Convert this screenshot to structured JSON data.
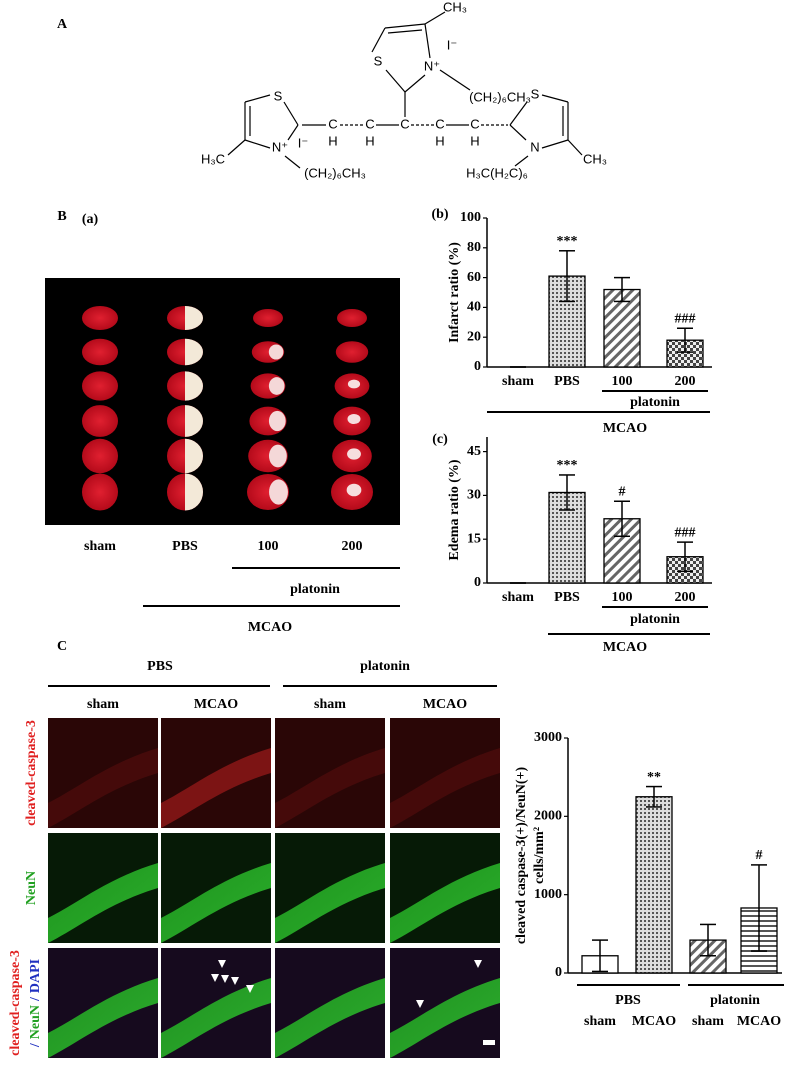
{
  "panels": [
    "A",
    "B",
    "(a)",
    "C"
  ],
  "structure": {
    "labels": [
      "CH₃",
      "I⁻",
      "S",
      "N⁺",
      "(CH₂)₆CH₃",
      "S",
      "N⁺",
      "I⁻",
      "H₃C",
      "(CH₂)₆CH₃",
      "C",
      "H",
      "C",
      "H",
      "C",
      "C",
      "H",
      "C",
      "H",
      "S",
      "N",
      "CH₃",
      "H₃C(H₂C)₆"
    ]
  },
  "photo": {
    "labels": [
      "sham",
      "PBS",
      "100",
      "200"
    ],
    "group_labels": [
      "platonin",
      "MCAO"
    ]
  },
  "micrographs": {
    "groups": [
      "PBS",
      "platonin"
    ],
    "columns": [
      "sham",
      "MCAO",
      "sham",
      "MCAO"
    ],
    "rows": [
      "cleaved-caspase-3",
      "NeuN"
    ],
    "merged": [
      "cleaved-caspase-3",
      "/",
      "NeuN",
      "/",
      "DAPI"
    ]
  },
  "chart_data": [
    {
      "type": "bar",
      "panel": "(b)",
      "ylabel": "Infarct ratio (%)",
      "categories": [
        "sham",
        "PBS",
        "100",
        "200"
      ],
      "values": [
        0,
        61,
        52,
        18
      ],
      "errors": [
        0,
        17,
        8,
        8
      ],
      "annotations": [
        null,
        "***",
        null,
        "###"
      ],
      "patterns": [
        "none",
        "dots",
        "diagonal",
        "checks"
      ],
      "ylim": [
        0,
        100
      ],
      "yticks": [
        0,
        20,
        40,
        60,
        80,
        100
      ],
      "group_labels": [
        "platonin",
        "MCAO"
      ]
    },
    {
      "type": "bar",
      "panel": "(c)",
      "ylabel": "Edema ratio (%)",
      "categories": [
        "sham",
        "PBS",
        "100",
        "200"
      ],
      "values": [
        0,
        31,
        22,
        9
      ],
      "errors": [
        0,
        6,
        6,
        5
      ],
      "annotations": [
        null,
        "***",
        "#",
        "###"
      ],
      "patterns": [
        "none",
        "dots",
        "diagonal",
        "checks"
      ],
      "ylim": [
        0,
        50
      ],
      "yticks": [
        0,
        15,
        30,
        45
      ],
      "group_labels": [
        "platonin",
        "MCAO"
      ]
    },
    {
      "type": "bar",
      "ylabel": [
        "cleaved caspase-3(+)/NeuN(+)",
        "cells/mm²"
      ],
      "categories": [
        "sham",
        "MCAO",
        "sham",
        "MCAO"
      ],
      "values": [
        220,
        2250,
        420,
        830
      ],
      "errors": [
        200,
        130,
        200,
        550
      ],
      "annotations": [
        null,
        "**",
        null,
        "#"
      ],
      "patterns": [
        "none",
        "dots",
        "diagonal",
        "hlines"
      ],
      "ylim": [
        0,
        3000
      ],
      "yticks": [
        0,
        1000,
        2000,
        3000
      ],
      "group_labels": [
        "PBS",
        "platonin"
      ]
    }
  ]
}
